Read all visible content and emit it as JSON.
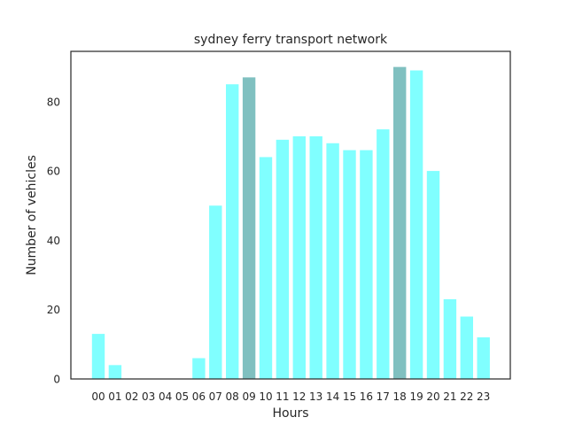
{
  "chart_data": {
    "type": "bar",
    "title": "sydney ferry transport network",
    "xlabel": "Hours",
    "ylabel": "Number of vehicles",
    "categories": [
      "00",
      "01",
      "02",
      "03",
      "04",
      "05",
      "06",
      "07",
      "08",
      "09",
      "10",
      "11",
      "12",
      "13",
      "14",
      "15",
      "16",
      "17",
      "18",
      "19",
      "20",
      "21",
      "22",
      "23"
    ],
    "values": [
      13,
      4,
      0,
      0,
      0,
      0,
      6,
      50,
      85,
      87,
      64,
      69,
      70,
      70,
      68,
      66,
      66,
      72,
      90,
      89,
      60,
      23,
      18,
      12
    ],
    "highlighted": [
      "09",
      "18"
    ],
    "ylim": [
      0,
      94.5
    ],
    "yticks": [
      0,
      20,
      40,
      60,
      80
    ],
    "grid": false,
    "colors": {
      "bar": "#80ffff",
      "highlight": "#80c0c0"
    }
  }
}
